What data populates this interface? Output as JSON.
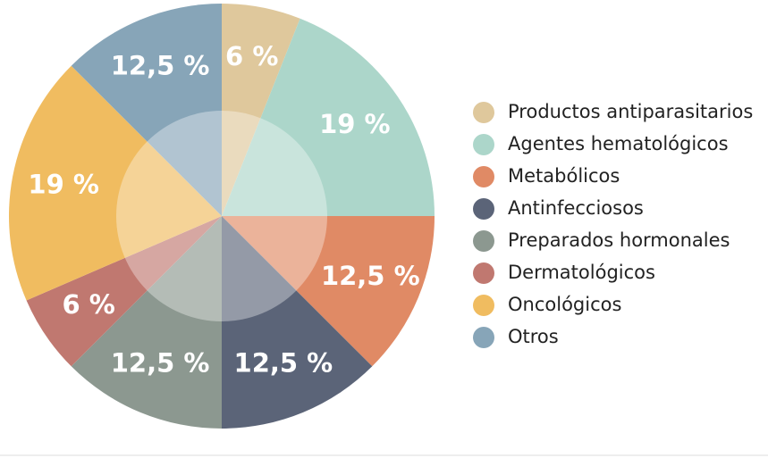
{
  "chart_data": {
    "type": "pie",
    "categories": [
      "Productos antiparasitarios",
      "Agentes hematológicos",
      "Metabólicos",
      "Antinfecciosos",
      "Preparados hormonales",
      "Dermatológicos",
      "Oncológicos",
      "Otros"
    ],
    "values": [
      6,
      19,
      12.5,
      12.5,
      12.5,
      6,
      19,
      12.5
    ],
    "value_labels": [
      "6 %",
      "19 %",
      "12,5 %",
      "12,5 %",
      "12,5 %",
      "6 %",
      "19 %",
      "12,5 %"
    ],
    "colors": [
      "#dfc89c",
      "#acd6ca",
      "#e08a65",
      "#5b6478",
      "#8c9890",
      "#c07870",
      "#f0bc60",
      "#87a5b8"
    ],
    "legend": "right"
  }
}
